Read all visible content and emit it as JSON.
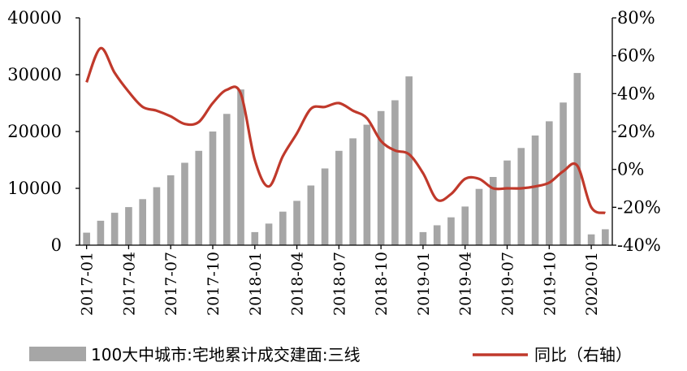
{
  "chart_data": {
    "type": "bar+line",
    "title": "",
    "xlabel": "",
    "ylabel": "",
    "x_tick_labels": [
      "2017-01",
      "2017-04",
      "2017-07",
      "2017-10",
      "2018-01",
      "2018-04",
      "2018-07",
      "2018-10",
      "2019-01",
      "2019-04",
      "2019-07",
      "2019-10",
      "2020-01"
    ],
    "y_left": {
      "min": 0,
      "max": 40000,
      "ticks": [
        "0",
        "10000",
        "20000",
        "30000",
        "40000"
      ]
    },
    "y_right": {
      "min": -40,
      "max": 80,
      "ticks": [
        "-40%",
        "-20%",
        "0%",
        "20%",
        "40%",
        "60%",
        "80%"
      ]
    },
    "grid": false,
    "legend_position": "bottom",
    "categories": [
      "2017-01",
      "2017-02",
      "2017-03",
      "2017-04",
      "2017-05",
      "2017-06",
      "2017-07",
      "2017-08",
      "2017-09",
      "2017-10",
      "2017-11",
      "2017-12",
      "2018-01",
      "2018-02",
      "2018-03",
      "2018-04",
      "2018-05",
      "2018-06",
      "2018-07",
      "2018-08",
      "2018-09",
      "2018-10",
      "2018-11",
      "2018-12",
      "2019-01",
      "2019-02",
      "2019-03",
      "2019-04",
      "2019-05",
      "2019-06",
      "2019-07",
      "2019-08",
      "2019-09",
      "2019-10",
      "2019-11",
      "2019-12",
      "2020-01",
      "2020-02"
    ],
    "series": [
      {
        "name": "100大中城市:宅地累计成交建面:三线",
        "type": "bar",
        "axis": "left",
        "color": "#a6a6a6",
        "values": [
          2200,
          4300,
          5700,
          6700,
          8100,
          10200,
          12300,
          14500,
          16600,
          20000,
          23100,
          27400,
          2300,
          3800,
          5900,
          7800,
          10500,
          13500,
          16600,
          18800,
          21200,
          23600,
          25500,
          29700,
          2300,
          3500,
          4900,
          6800,
          9900,
          12000,
          14900,
          17100,
          19300,
          21800,
          25100,
          30300,
          1900,
          2800
        ]
      },
      {
        "name": "同比（右轴）",
        "type": "line",
        "axis": "right",
        "color": "#c0392b",
        "values": [
          46,
          64,
          51,
          41,
          33,
          31,
          28,
          24,
          25,
          35,
          42,
          40,
          5,
          -9,
          7,
          19,
          32,
          33,
          35,
          31,
          27,
          15,
          10,
          8,
          -2,
          -16,
          -13,
          -5,
          -5,
          -10,
          -10,
          -10,
          -9,
          -7,
          -1,
          2,
          -20,
          -23
        ]
      }
    ]
  }
}
